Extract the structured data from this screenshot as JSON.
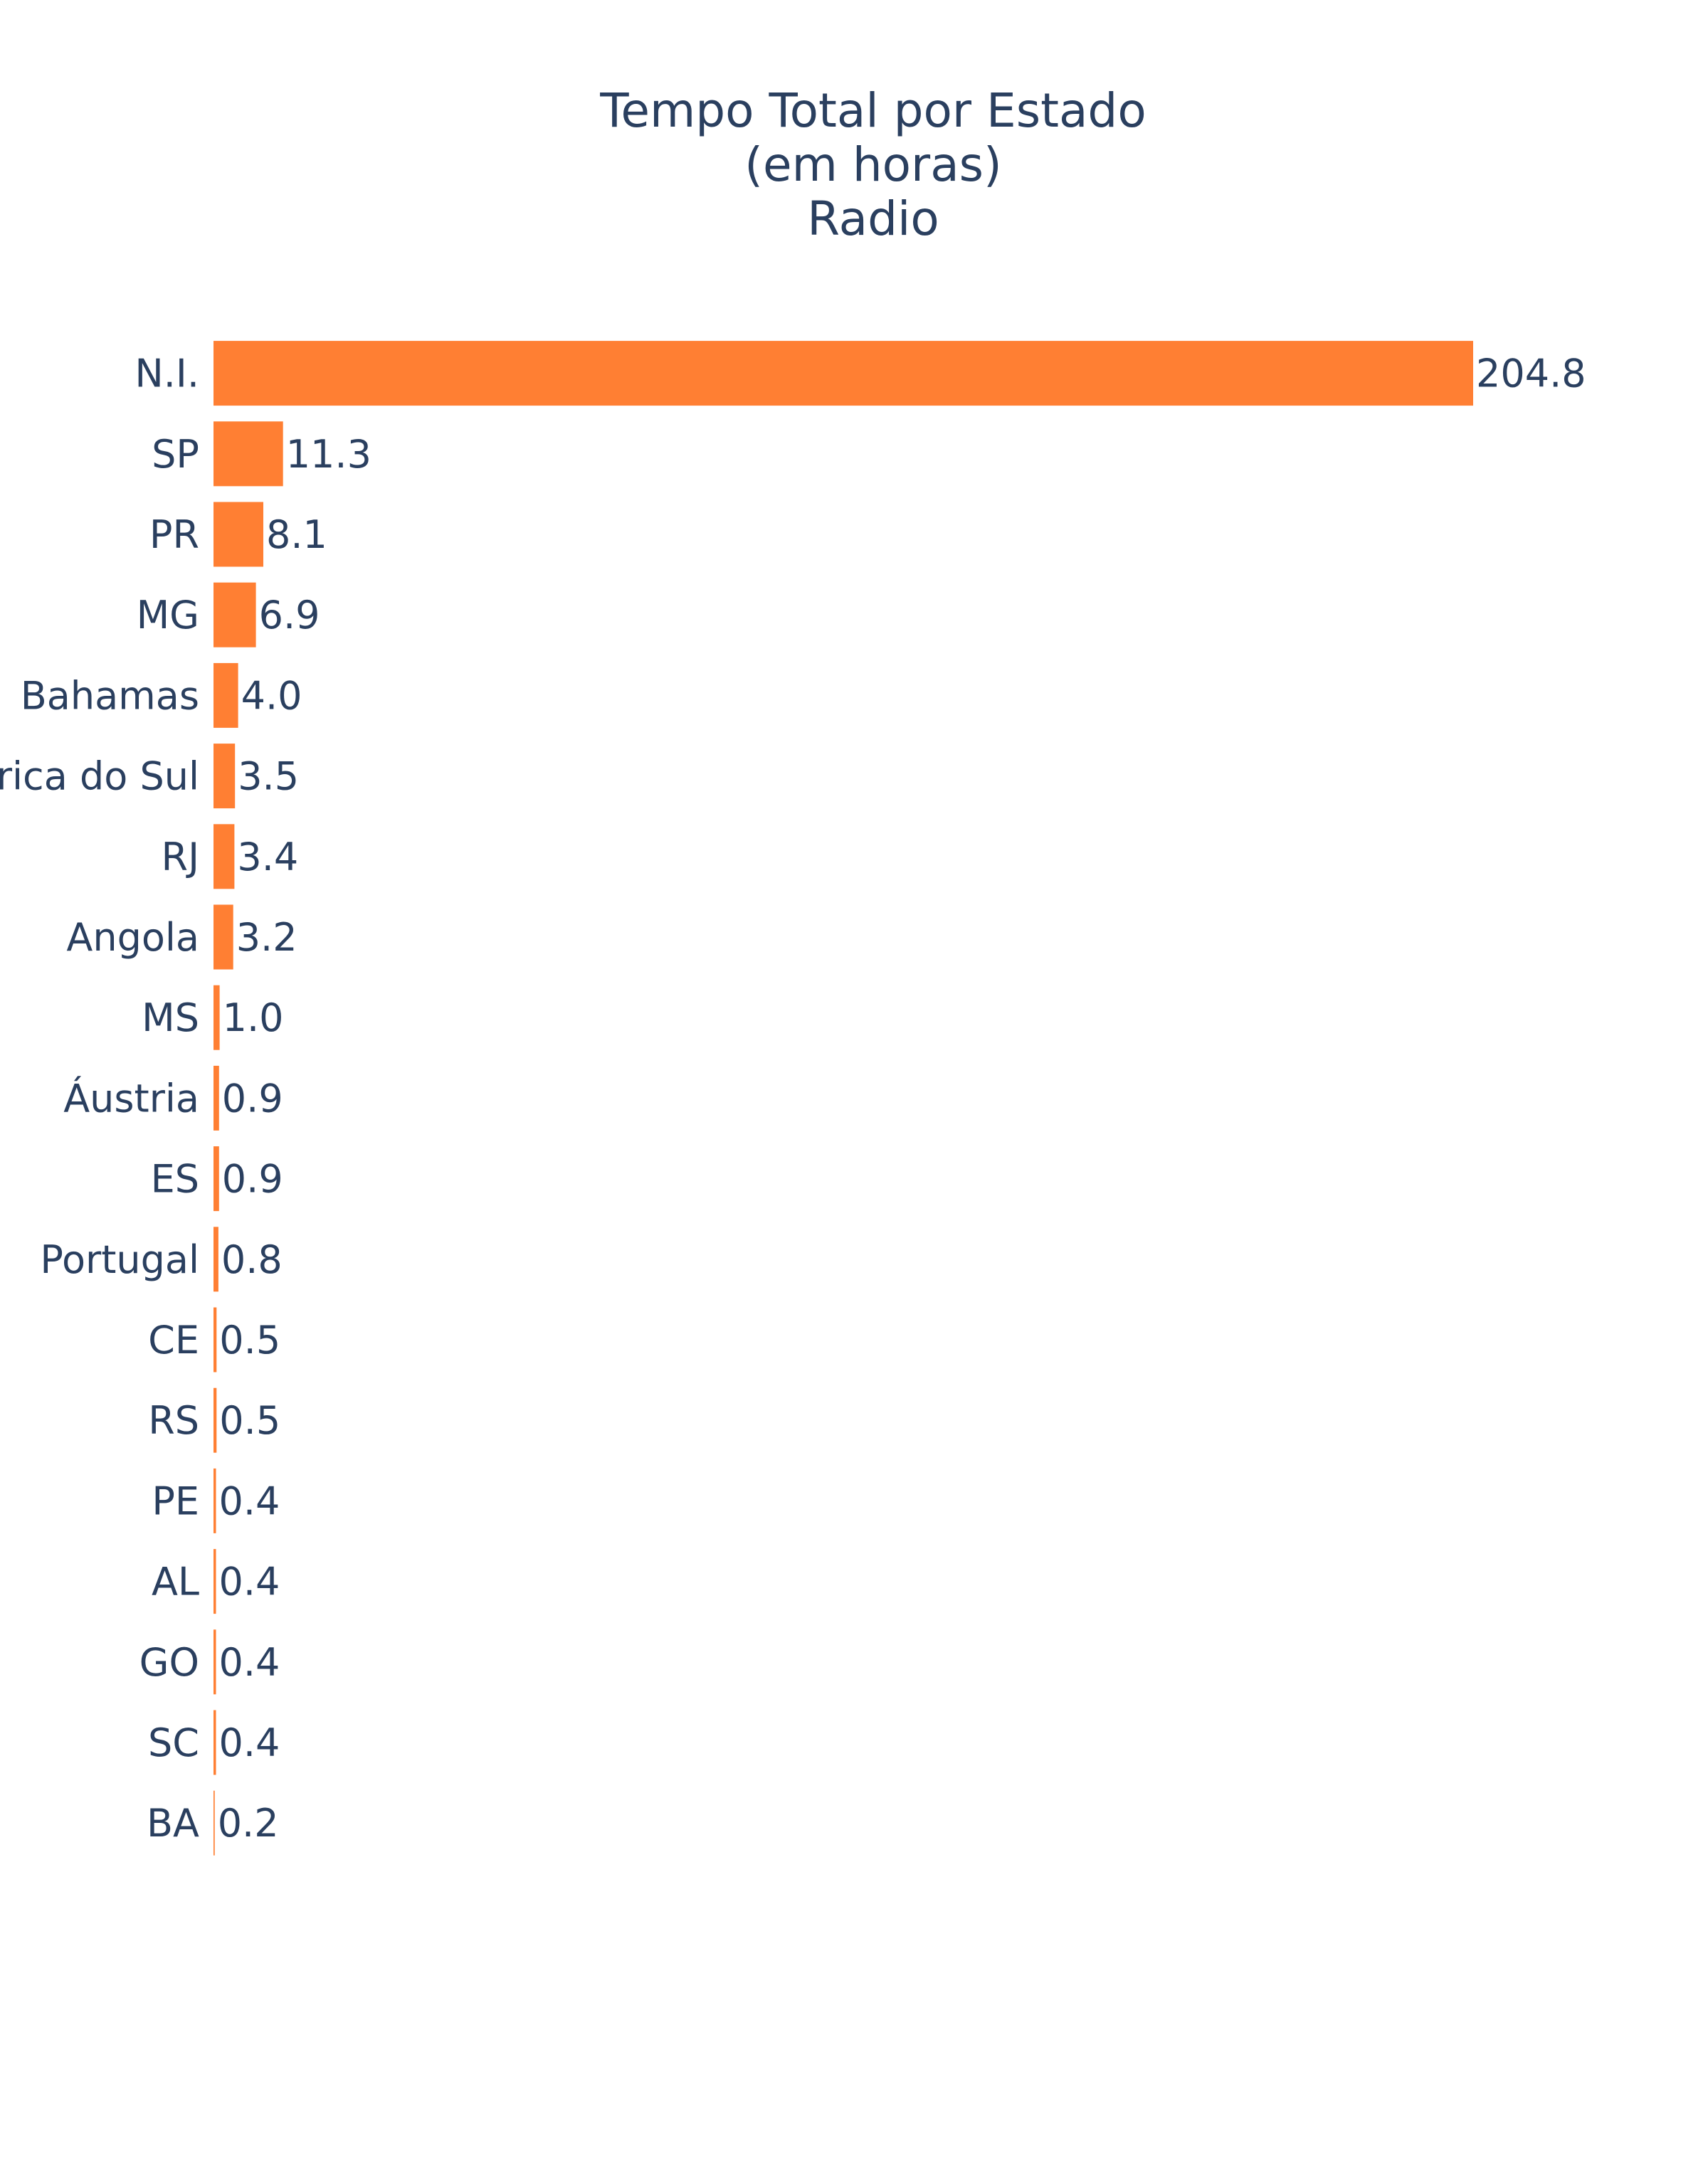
{
  "chart_data": {
    "type": "bar",
    "orientation": "horizontal",
    "title": {
      "lines": [
        "Tempo Total por Estado",
        "(em horas)",
        "Radio"
      ]
    },
    "categories": [
      "N.I.",
      "SP",
      "PR",
      "MG",
      "Bahamas",
      "África do Sul",
      "RJ",
      "Angola",
      "MS",
      "Áustria",
      "ES",
      "Portugal",
      "CE",
      "RS",
      "PE",
      "AL",
      "GO",
      "SC",
      "BA"
    ],
    "values": [
      204.8,
      11.3,
      8.1,
      6.9,
      4.0,
      3.5,
      3.4,
      3.2,
      1.0,
      0.9,
      0.9,
      0.8,
      0.5,
      0.5,
      0.4,
      0.4,
      0.4,
      0.4,
      0.2
    ],
    "value_labels": [
      "204.8",
      "11.3",
      "8.1",
      "6.9",
      "4.0",
      "3.5",
      "3.4",
      "3.2",
      "1.0",
      "0.9",
      "0.9",
      "0.8",
      "0.5",
      "0.5",
      "0.4",
      "0.4",
      "0.4",
      "0.4",
      "0.2"
    ],
    "xlabel": "",
    "ylabel": "",
    "xlim": [
      0,
      215.6
    ],
    "grid": false,
    "legend": "none",
    "bar_color": "#ff7f33"
  }
}
